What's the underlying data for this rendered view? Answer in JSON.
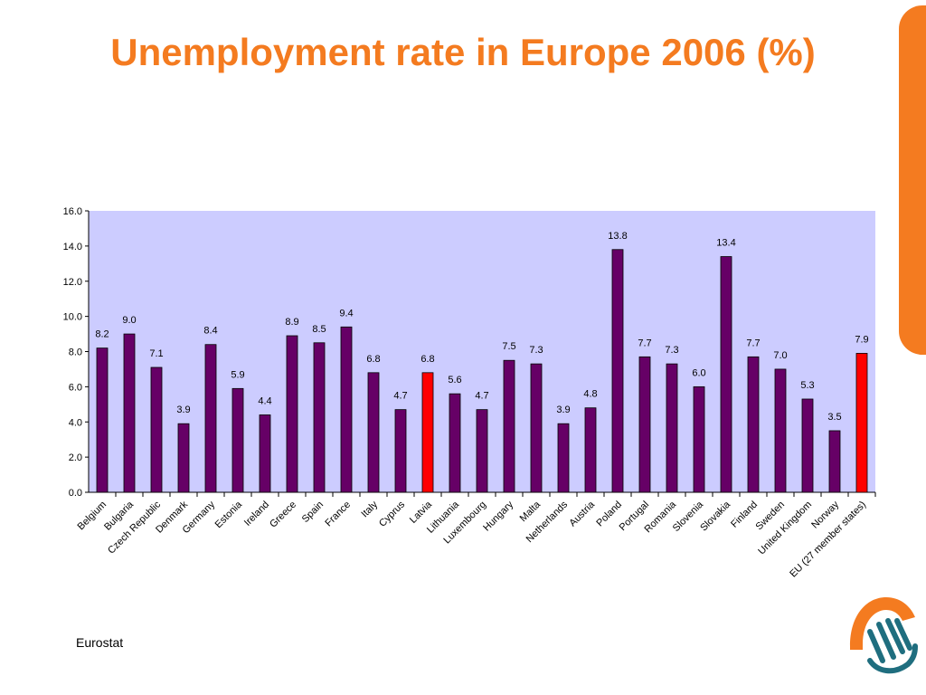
{
  "slide": {
    "title": "Unemployment rate in Europe 2006 (%)",
    "source": "Eurostat"
  },
  "colors": {
    "title": "#f47b20",
    "accent": "#f47b20",
    "plot_background": "#ccccff",
    "bar_default": "#660066",
    "bar_highlight": "#ff0000",
    "logo_orange": "#f47b20",
    "logo_teal": "#1f6e7f"
  },
  "icons": {
    "logo": "hand-logo-icon"
  },
  "chart_data": {
    "type": "bar",
    "categories": [
      "Belgium",
      "Bulgaria",
      "Czech Republic",
      "Denmark",
      "Germany",
      "Estonia",
      "Ireland",
      "Greece",
      "Spain",
      "France",
      "Italy",
      "Cyprus",
      "Latvia",
      "Lithuania",
      "Luxembourg",
      "Hungary",
      "Malta",
      "Netherlands",
      "Austria",
      "Poland",
      "Portugal",
      "Romania",
      "Slovenia",
      "Slovakia",
      "Finland",
      "Sweden",
      "United Kingdom",
      "Norway",
      "EU (27 member states)"
    ],
    "values": [
      8.2,
      9.0,
      7.1,
      3.9,
      8.4,
      5.9,
      4.4,
      8.9,
      8.5,
      9.4,
      6.8,
      4.7,
      6.8,
      5.6,
      4.7,
      7.5,
      7.3,
      3.9,
      4.8,
      13.8,
      7.7,
      7.3,
      6.0,
      13.4,
      7.7,
      7.0,
      5.3,
      3.5,
      7.9
    ],
    "value_labels": [
      "8.2",
      "9.0",
      "7.1",
      "3.9",
      "8.4",
      "5.9",
      "4.4",
      "8.9",
      "8.5",
      "9.4",
      "6.8",
      "4.7",
      "6.8",
      "5.6",
      "4.7",
      "7.5",
      "7.3",
      "3.9",
      "4.8",
      "13.8",
      "7.7",
      "7.3",
      "6.0",
      "13.4",
      "7.7",
      "7.0",
      "5.3",
      "3.5",
      "7.9"
    ],
    "highlighted": [
      "Latvia",
      "EU (27 member states)"
    ],
    "title": "",
    "xlabel": "",
    "ylabel": "",
    "ylim": [
      0,
      16
    ],
    "y_ticks": [
      "0.0",
      "2.0",
      "4.0",
      "6.0",
      "8.0",
      "10.0",
      "12.0",
      "14.0",
      "16.0"
    ],
    "grid": false,
    "legend": "none"
  }
}
